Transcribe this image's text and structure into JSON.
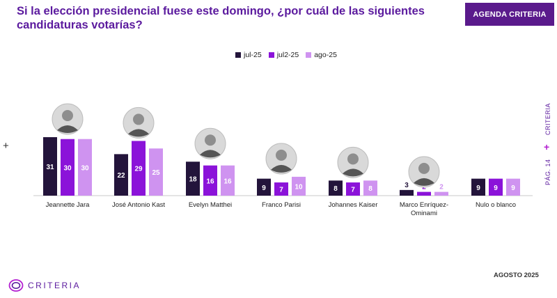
{
  "header": {
    "title": "Si la elección presidencial fuese este domingo, ¿por cuál de las siguientes candidaturas votarías?",
    "agenda_label": "AGENDA CRITERIA"
  },
  "side": {
    "brand": "CRITERIA",
    "page": "PÁG. 14"
  },
  "footer": {
    "date": "AGOSTO 2025",
    "logo_text": "CRITERIA"
  },
  "colors": {
    "jul": "#23143b",
    "jul2": "#8b13d9",
    "ago": "#cf93f0",
    "title": "#5b1a9e"
  },
  "chart_data": {
    "type": "bar",
    "categories": [
      "Jeannette Jara",
      "José Antonio Kast",
      "Evelyn Matthei",
      "Franco Parisi",
      "Johannes Kaiser",
      "Marco Enríquez-Ominami",
      "Nulo o blanco"
    ],
    "category_lines": [
      [
        "Jeannette Jara"
      ],
      [
        "José Antonio Kast"
      ],
      [
        "Evelyn Matthei"
      ],
      [
        "Franco Parisi"
      ],
      [
        "Johannes Kaiser"
      ],
      [
        "Marco Enríquez-",
        "Ominami"
      ],
      [
        "Nulo o blanco"
      ]
    ],
    "series": [
      {
        "name": "jul-25",
        "values": [
          31,
          22,
          18,
          9,
          8,
          3,
          9
        ]
      },
      {
        "name": "jul2-25",
        "values": [
          30,
          29,
          16,
          7,
          7,
          2,
          9
        ]
      },
      {
        "name": "ago-25",
        "values": [
          30,
          25,
          16,
          10,
          8,
          2,
          9
        ]
      }
    ],
    "has_photo": [
      true,
      true,
      true,
      true,
      true,
      true,
      false
    ],
    "ylim": [
      0,
      31
    ],
    "legend_position": "top-center",
    "grid": false
  }
}
